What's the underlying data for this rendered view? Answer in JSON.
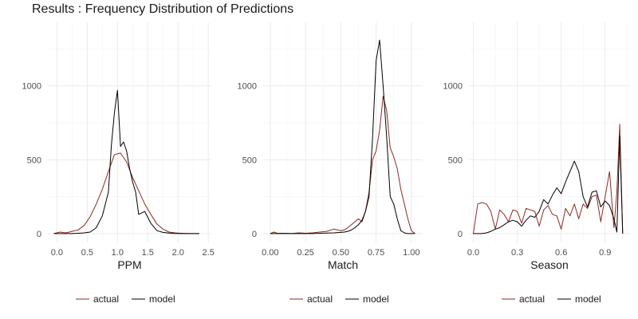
{
  "title": "Results : Frequency Distribution of Predictions",
  "colors": {
    "actual": "#8b2a22",
    "model": "#000000"
  },
  "chart_data": [
    {
      "type": "line",
      "xlabel": "PPM",
      "xlim": [
        -0.15,
        2.55
      ],
      "ylim": [
        -60,
        1430
      ],
      "xticks": [
        0.0,
        0.5,
        1.0,
        1.5,
        2.0,
        2.5
      ],
      "xtick_labels": [
        "0.0",
        "0.5",
        "1.0",
        "1.5",
        "2.0",
        "2.5"
      ],
      "yticks": [
        0,
        500,
        1000
      ],
      "ytick_labels": [
        "0",
        "500",
        "1000"
      ],
      "grid": true,
      "legend": "bottom",
      "series": [
        {
          "name": "actual",
          "x": [
            -0.05,
            0.05,
            0.15,
            0.25,
            0.35,
            0.45,
            0.55,
            0.65,
            0.75,
            0.85,
            0.95,
            1.05,
            1.15,
            1.25,
            1.35,
            1.45,
            1.55,
            1.65,
            1.75,
            1.85,
            1.95,
            2.05,
            2.15,
            2.25,
            2.35
          ],
          "y": [
            0,
            10,
            5,
            15,
            25,
            55,
            115,
            200,
            300,
            420,
            535,
            545,
            485,
            380,
            290,
            200,
            130,
            65,
            30,
            10,
            5,
            2,
            0,
            0,
            0
          ]
        },
        {
          "name": "model",
          "x": [
            -0.05,
            0.05,
            0.15,
            0.25,
            0.35,
            0.45,
            0.55,
            0.65,
            0.75,
            0.85,
            0.9,
            0.95,
            1.0,
            1.05,
            1.1,
            1.15,
            1.2,
            1.25,
            1.3,
            1.35,
            1.45,
            1.55,
            1.65,
            1.75,
            1.85,
            1.95,
            2.05,
            2.15,
            2.25,
            2.35
          ],
          "y": [
            0,
            0,
            0,
            0,
            2,
            5,
            10,
            40,
            120,
            280,
            600,
            820,
            970,
            590,
            620,
            560,
            440,
            350,
            280,
            130,
            150,
            70,
            20,
            8,
            3,
            1,
            0,
            0,
            0,
            0
          ]
        }
      ]
    },
    {
      "type": "line",
      "xlabel": "Match",
      "xlim": [
        -0.05,
        1.08
      ],
      "ylim": [
        -60,
        1430
      ],
      "xticks": [
        0.0,
        0.25,
        0.5,
        0.75,
        1.0
      ],
      "xtick_labels": [
        "0.00",
        "0.25",
        "0.50",
        "0.75",
        "1.00"
      ],
      "yticks": [
        0,
        500,
        1000
      ],
      "ytick_labels": [
        "0",
        "500",
        "1000"
      ],
      "grid": true,
      "legend": "bottom",
      "series": [
        {
          "name": "actual",
          "x": [
            0.0,
            0.025,
            0.05,
            0.1,
            0.15,
            0.2,
            0.25,
            0.3,
            0.35,
            0.4,
            0.45,
            0.5,
            0.525,
            0.55,
            0.575,
            0.6,
            0.625,
            0.65,
            0.675,
            0.7,
            0.725,
            0.75,
            0.775,
            0.8,
            0.825,
            0.85,
            0.875,
            0.9,
            0.925,
            0.95,
            0.975,
            1.0,
            1.025
          ],
          "y": [
            0,
            10,
            2,
            2,
            0,
            5,
            2,
            5,
            10,
            15,
            30,
            20,
            25,
            40,
            60,
            80,
            100,
            80,
            150,
            280,
            500,
            560,
            700,
            930,
            830,
            580,
            520,
            440,
            300,
            200,
            100,
            20,
            0
          ]
        },
        {
          "name": "model",
          "x": [
            0.0,
            0.025,
            0.05,
            0.1,
            0.15,
            0.2,
            0.25,
            0.3,
            0.35,
            0.4,
            0.45,
            0.5,
            0.525,
            0.55,
            0.575,
            0.6,
            0.625,
            0.65,
            0.675,
            0.7,
            0.725,
            0.75,
            0.775,
            0.8,
            0.825,
            0.85,
            0.875,
            0.9,
            0.925,
            0.95,
            0.975,
            1.0,
            1.025
          ],
          "y": [
            0,
            0,
            0,
            0,
            0,
            0,
            0,
            0,
            2,
            3,
            5,
            8,
            10,
            15,
            25,
            40,
            60,
            90,
            150,
            250,
            650,
            1170,
            1310,
            1000,
            650,
            250,
            200,
            100,
            20,
            5,
            0,
            0,
            0
          ]
        }
      ]
    },
    {
      "type": "line",
      "xlabel": "Season",
      "xlim": [
        -0.03,
        1.07
      ],
      "ylim": [
        -60,
        1430
      ],
      "xticks": [
        0.0,
        0.3,
        0.6,
        0.9
      ],
      "xtick_labels": [
        "0.0",
        "0.3",
        "0.6",
        "0.9"
      ],
      "yticks": [
        0,
        500,
        1000
      ],
      "ytick_labels": [
        "0",
        "500",
        "1000"
      ],
      "grid": true,
      "legend": "bottom",
      "series": [
        {
          "name": "actual",
          "x": [
            0.0,
            0.03,
            0.06,
            0.09,
            0.12,
            0.15,
            0.18,
            0.21,
            0.24,
            0.27,
            0.3,
            0.33,
            0.36,
            0.39,
            0.42,
            0.45,
            0.48,
            0.51,
            0.54,
            0.57,
            0.6,
            0.63,
            0.66,
            0.69,
            0.72,
            0.75,
            0.78,
            0.81,
            0.84,
            0.87,
            0.9,
            0.93,
            0.96,
            0.98,
            1.0,
            1.02
          ],
          "y": [
            0,
            200,
            210,
            200,
            150,
            30,
            160,
            130,
            80,
            160,
            150,
            70,
            170,
            160,
            150,
            50,
            160,
            190,
            130,
            120,
            30,
            170,
            120,
            200,
            100,
            200,
            170,
            250,
            260,
            80,
            250,
            420,
            40,
            280,
            740,
            0
          ]
        },
        {
          "name": "model",
          "x": [
            0.0,
            0.03,
            0.06,
            0.09,
            0.12,
            0.15,
            0.18,
            0.21,
            0.24,
            0.27,
            0.3,
            0.33,
            0.36,
            0.39,
            0.42,
            0.45,
            0.48,
            0.51,
            0.54,
            0.57,
            0.6,
            0.63,
            0.66,
            0.69,
            0.72,
            0.75,
            0.78,
            0.81,
            0.84,
            0.87,
            0.9,
            0.93,
            0.96,
            0.98,
            1.0,
            1.02
          ],
          "y": [
            0,
            0,
            0,
            5,
            15,
            30,
            40,
            60,
            80,
            90,
            80,
            50,
            90,
            120,
            110,
            150,
            230,
            200,
            260,
            310,
            270,
            350,
            420,
            490,
            420,
            250,
            180,
            280,
            290,
            180,
            220,
            190,
            100,
            10,
            660,
            0
          ]
        }
      ]
    }
  ]
}
